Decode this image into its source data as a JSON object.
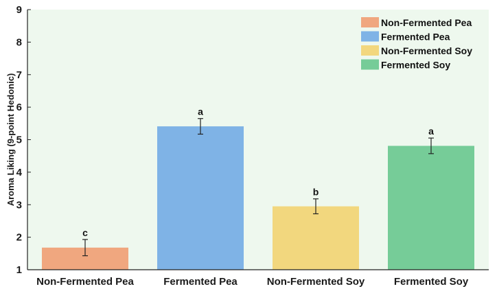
{
  "colors": {
    "plot_background": "#eef8ee",
    "axis": "#222222",
    "error_bar": "#222222"
  },
  "chart_data": {
    "type": "bar",
    "title": "",
    "xlabel": "",
    "ylabel": "Aroma Liking (9-point Hedonic)",
    "ylim": [
      1,
      9
    ],
    "yticks": [
      "1",
      "2",
      "3",
      "4",
      "5",
      "6",
      "7",
      "8",
      "9"
    ],
    "categories": [
      "Non-Fermented Pea",
      "Fermented Pea",
      "Non-Fermented Soy",
      "Fermented Soy"
    ],
    "values": [
      1.68,
      5.41,
      2.95,
      4.81
    ],
    "errors": [
      0.25,
      0.24,
      0.23,
      0.24
    ],
    "significance": [
      "c",
      "a",
      "b",
      "a"
    ],
    "bar_colors": [
      "#f0a77f",
      "#7fb3e6",
      "#f2d77e",
      "#76cc98"
    ],
    "grid": false,
    "legend": {
      "position": "top-right",
      "entries": [
        {
          "label": "Non-Fermented Pea",
          "color": "#f0a77f"
        },
        {
          "label": "Fermented Pea",
          "color": "#7fb3e6"
        },
        {
          "label": "Non-Fermented Soy",
          "color": "#f2d77e"
        },
        {
          "label": "Fermented Soy",
          "color": "#76cc98"
        }
      ]
    }
  }
}
